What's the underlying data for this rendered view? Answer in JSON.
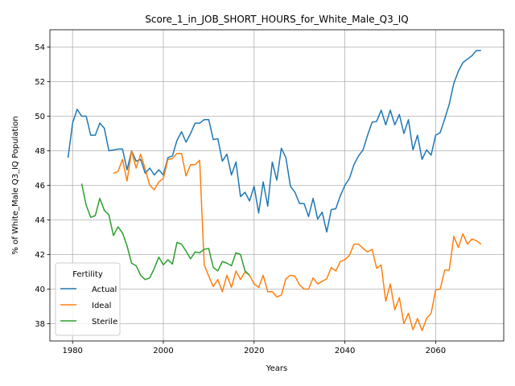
{
  "chart_data": {
    "type": "line",
    "title": "Score_1_in_JOB_SHORT_HOURS_for_White_Male_Q3_IQ",
    "xlabel": "Years",
    "ylabel": "% of White_Male Q3_IQ Population",
    "xlim": [
      1975,
      2075
    ],
    "ylim": [
      37,
      55
    ],
    "xticks": [
      1980,
      2000,
      2020,
      2040,
      2060
    ],
    "yticks": [
      38,
      40,
      42,
      44,
      46,
      48,
      50,
      52,
      54
    ],
    "grid": true,
    "legend": {
      "title": "Fertility",
      "placement": "lower-left"
    },
    "series": [
      {
        "name": "Actual",
        "color": "#1f77b4",
        "x": [
          1979,
          1980,
          1981,
          1982,
          1983,
          1984,
          1985,
          1986,
          1987,
          1988,
          1989,
          1990,
          1991,
          1992,
          1993,
          1994,
          1995,
          1996,
          1997,
          1998,
          1999,
          2000,
          2001,
          2002,
          2003,
          2004,
          2005,
          2006,
          2007,
          2008,
          2009,
          2010,
          2011,
          2012,
          2013,
          2014,
          2015,
          2016,
          2017,
          2018,
          2019,
          2020,
          2021,
          2022,
          2023,
          2024,
          2025,
          2026,
          2027,
          2028,
          2029,
          2030,
          2031,
          2032,
          2033,
          2034,
          2035,
          2036,
          2037,
          2038,
          2039,
          2040,
          2041,
          2042,
          2043,
          2044,
          2045,
          2046,
          2047,
          2048,
          2049,
          2050,
          2051,
          2052,
          2053,
          2054,
          2055,
          2056,
          2057,
          2058,
          2059,
          2060,
          2061,
          2062,
          2063,
          2064,
          2065,
          2066,
          2067,
          2068,
          2069,
          2070
        ],
        "values": [
          47.6,
          49.6,
          50.4,
          50.0,
          50.0,
          48.9,
          48.9,
          49.6,
          49.3,
          48.0,
          48.05,
          48.1,
          48.1,
          46.9,
          48.0,
          47.4,
          47.5,
          46.7,
          47.0,
          46.6,
          46.9,
          46.6,
          47.6,
          47.7,
          48.6,
          49.1,
          48.5,
          49.0,
          49.6,
          49.6,
          49.8,
          49.8,
          48.65,
          48.7,
          47.4,
          47.8,
          46.6,
          47.35,
          45.35,
          45.6,
          45.1,
          45.95,
          44.4,
          46.2,
          44.8,
          47.35,
          46.3,
          48.15,
          47.6,
          45.95,
          45.6,
          44.95,
          44.95,
          44.2,
          45.25,
          44.05,
          44.45,
          43.3,
          44.6,
          44.65,
          45.4,
          46.0,
          46.4,
          47.2,
          47.7,
          48.05,
          48.9,
          49.65,
          49.7,
          50.35,
          49.5,
          50.35,
          49.5,
          50.1,
          49.0,
          49.8,
          48.05,
          48.9,
          47.5,
          48.05,
          47.75,
          48.9,
          49.05,
          49.85,
          50.7,
          51.9,
          52.6,
          53.1,
          53.3,
          53.5,
          53.8,
          53.8
        ]
      },
      {
        "name": "Ideal",
        "color": "#ff7f0e",
        "x": [
          1989,
          1990,
          1991,
          1992,
          1993,
          1994,
          1995,
          1996,
          1997,
          1998,
          1999,
          2000,
          2001,
          2002,
          2003,
          2004,
          2005,
          2006,
          2007,
          2008,
          2009,
          2010,
          2011,
          2012,
          2013,
          2014,
          2015,
          2016,
          2017,
          2018,
          2019,
          2020,
          2021,
          2022,
          2023,
          2024,
          2025,
          2026,
          2027,
          2028,
          2029,
          2030,
          2031,
          2032,
          2033,
          2034,
          2035,
          2036,
          2037,
          2038,
          2039,
          2040,
          2041,
          2042,
          2043,
          2044,
          2045,
          2046,
          2047,
          2048,
          2049,
          2050,
          2051,
          2052,
          2053,
          2054,
          2055,
          2056,
          2057,
          2058,
          2059,
          2060,
          2061,
          2062,
          2063,
          2064,
          2065,
          2066,
          2067,
          2068,
          2069,
          2070
        ],
        "values": [
          46.7,
          46.8,
          47.5,
          46.25,
          48.0,
          47.0,
          47.8,
          46.95,
          46.0,
          45.75,
          46.2,
          46.4,
          47.5,
          47.55,
          47.85,
          47.85,
          46.55,
          47.2,
          47.2,
          47.45,
          41.4,
          40.75,
          40.15,
          40.55,
          39.85,
          40.8,
          40.1,
          41.05,
          40.55,
          41.0,
          40.8,
          40.3,
          40.1,
          40.8,
          39.85,
          39.85,
          39.55,
          39.65,
          40.6,
          40.8,
          40.75,
          40.25,
          40.0,
          40.0,
          40.65,
          40.3,
          40.45,
          40.6,
          41.25,
          41.05,
          41.6,
          41.7,
          41.95,
          42.6,
          42.6,
          42.35,
          42.15,
          42.3,
          41.2,
          41.4,
          39.3,
          40.3,
          38.8,
          39.5,
          38.0,
          38.6,
          37.65,
          38.3,
          37.6,
          38.3,
          38.6,
          39.95,
          40.0,
          41.1,
          41.1,
          43.05,
          42.4,
          43.2,
          42.6,
          42.9,
          42.8,
          42.6
        ]
      },
      {
        "name": "Sterile",
        "color": "#2ca02c",
        "x": [
          1982,
          1983,
          1984,
          1985,
          1986,
          1987,
          1988,
          1989,
          1990,
          1991,
          1992,
          1993,
          1994,
          1995,
          1996,
          1997,
          1998,
          1999,
          2000,
          2001,
          2002,
          2003,
          2004,
          2005,
          2006,
          2007,
          2008,
          2009,
          2010,
          2011,
          2012,
          2013,
          2014,
          2015,
          2016,
          2017,
          2018,
          2019
        ],
        "values": [
          46.1,
          44.85,
          44.15,
          44.25,
          45.25,
          44.55,
          44.3,
          43.1,
          43.6,
          43.25,
          42.5,
          41.5,
          41.35,
          40.8,
          40.55,
          40.65,
          41.2,
          41.85,
          41.4,
          41.7,
          41.45,
          42.7,
          42.6,
          42.2,
          41.75,
          42.15,
          42.1,
          42.3,
          42.35,
          41.25,
          41.05,
          41.6,
          41.5,
          41.35,
          42.1,
          42.0,
          41.05,
          40.8
        ]
      }
    ]
  }
}
